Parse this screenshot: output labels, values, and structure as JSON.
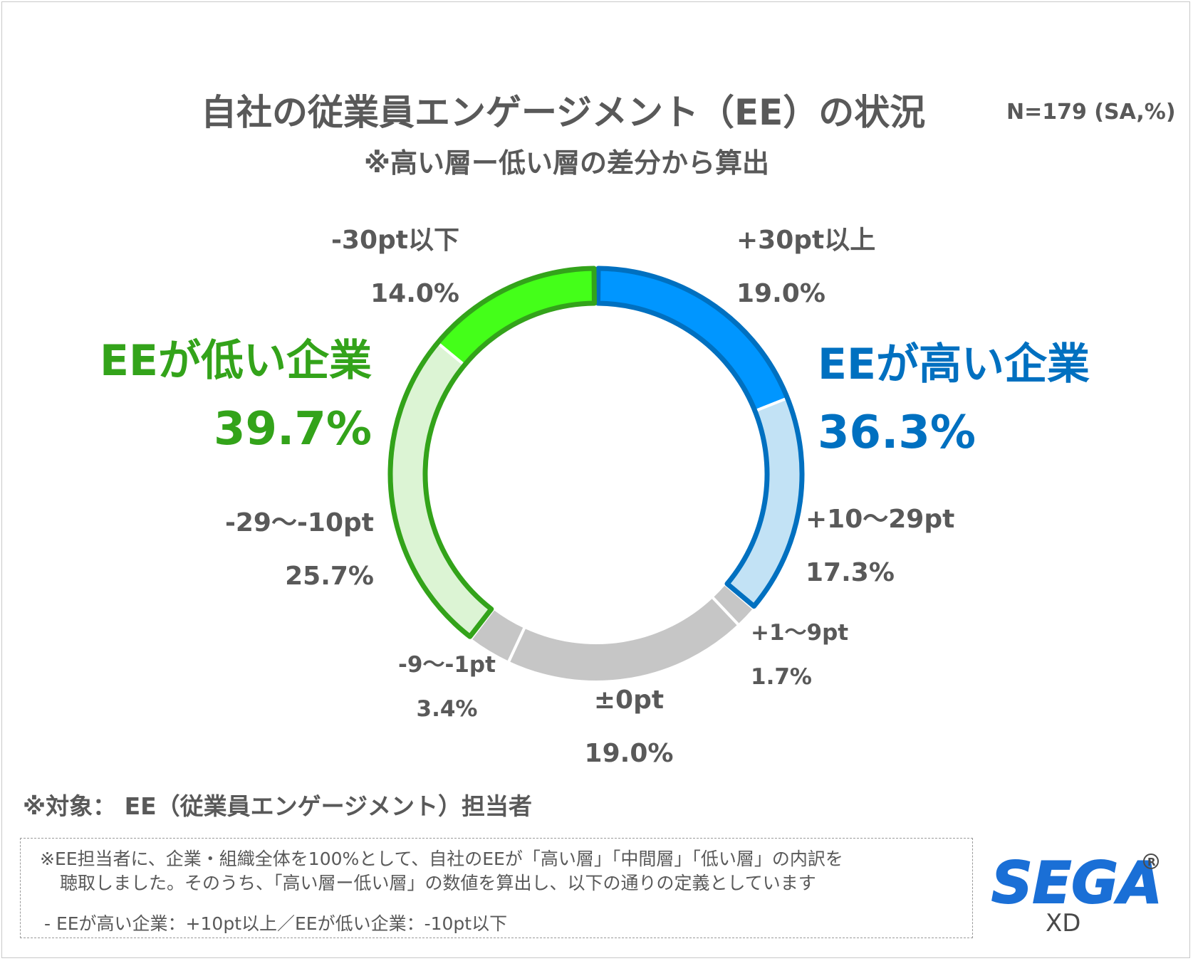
{
  "header": {
    "title": "自社の従業員エンゲージメント（EE）の状況",
    "sample": "N=179 (SA,%)",
    "subtitle": "※高い層ー低い層の差分から算出"
  },
  "groups": {
    "high": {
      "label": "EEが高い企業",
      "value": "36.3%",
      "color": "#0070c0"
    },
    "low": {
      "label": "EEが低い企業",
      "value": "39.7%",
      "color": "#33a31a"
    }
  },
  "footer": {
    "target": "※対象： EE（従業員エンゲージメント）担当者",
    "note_line1": "※EE担当者に、企業・組織全体を100%として、自社のEEが「高い層」「中間層」「低い層」の内訳を",
    "note_line2": "聴取しました。そのうち、「高い層ー低い層」の数値を算出し、以下の通りの定義としています",
    "note_line3": "- EEが高い企業：+10pt以上／EEが低い企業：-10pt以下"
  },
  "logo": {
    "brand": "SEGA",
    "sub": "XD",
    "color": "#1a6fd6"
  },
  "chart_data": {
    "type": "pie",
    "variant": "donut",
    "title": "自社の従業員エンゲージメント（EE）の状況",
    "subtitle": "※高い層ー低い層の差分から算出",
    "unit": "%",
    "categories": [
      "+30pt以上",
      "+10〜29pt",
      "+1〜9pt",
      "±0pt",
      "-9〜-1pt",
      "-29〜-10pt",
      "-30pt以下"
    ],
    "values": [
      19.0,
      17.3,
      1.7,
      19.0,
      3.4,
      25.7,
      14.0
    ],
    "labels": [
      "19.0%",
      "17.3%",
      "1.7%",
      "19.0%",
      "3.4%",
      "25.7%",
      "14.0%"
    ],
    "colors": [
      "#0096ff",
      "#c2e2f5",
      "#c6c6c6",
      "#c6c6c6",
      "#c6c6c6",
      "#dcf4d4",
      "#44ff19"
    ],
    "groups": [
      {
        "name": "EEが高い企業",
        "value": 36.3,
        "members": [
          "+30pt以上",
          "+10〜29pt"
        ],
        "outline": "#0070c0"
      },
      {
        "name": "EEが低い企業",
        "value": 39.7,
        "members": [
          "-29〜-10pt",
          "-30pt以下"
        ],
        "outline": "#33a31a"
      }
    ]
  }
}
